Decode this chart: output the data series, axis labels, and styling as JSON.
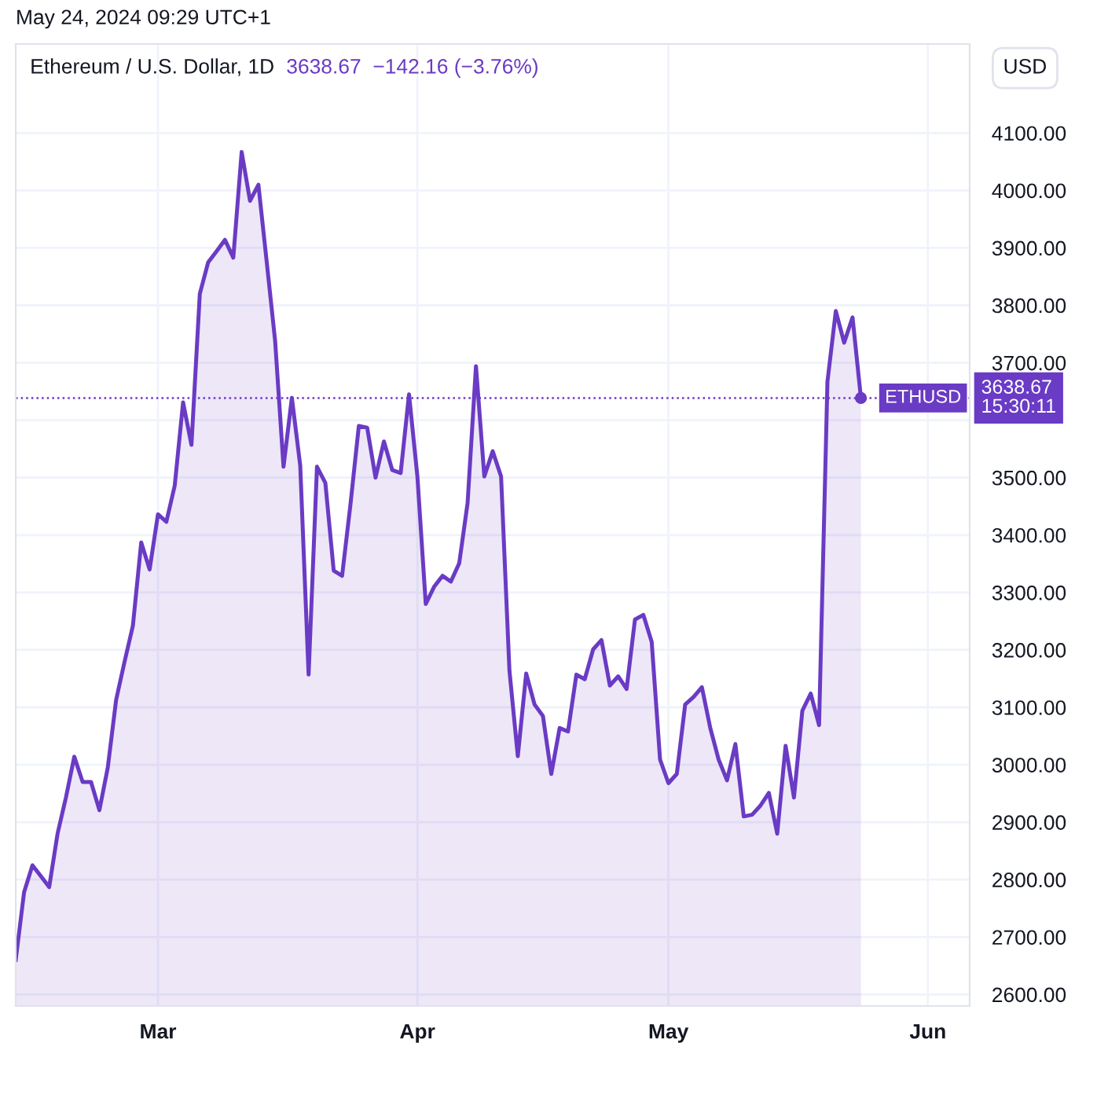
{
  "chart_data": {
    "type": "area",
    "title": "Ethereum / U.S. Dollar, 1D",
    "subtitle": "May 24, 2024 09:29 UTC+1",
    "ylabel": "USD",
    "annotations": [
      "3638.67  −142.16 (−3.76%)",
      {
        "text": "ETHUSD",
        "x": "2024-05-24",
        "y": 3638.67
      }
    ],
    "x": [
      "2024-02-13",
      "2024-02-14",
      "2024-02-15",
      "2024-02-16",
      "2024-02-17",
      "2024-02-18",
      "2024-02-19",
      "2024-02-20",
      "2024-02-21",
      "2024-02-22",
      "2024-02-23",
      "2024-02-24",
      "2024-02-25",
      "2024-02-26",
      "2024-02-27",
      "2024-02-28",
      "2024-02-29",
      "2024-03-01",
      "2024-03-02",
      "2024-03-03",
      "2024-03-04",
      "2024-03-05",
      "2024-03-06",
      "2024-03-07",
      "2024-03-08",
      "2024-03-09",
      "2024-03-10",
      "2024-03-11",
      "2024-03-12",
      "2024-03-13",
      "2024-03-14",
      "2024-03-15",
      "2024-03-16",
      "2024-03-17",
      "2024-03-18",
      "2024-03-19",
      "2024-03-20",
      "2024-03-21",
      "2024-03-22",
      "2024-03-23",
      "2024-03-24",
      "2024-03-25",
      "2024-03-26",
      "2024-03-27",
      "2024-03-28",
      "2024-03-29",
      "2024-03-30",
      "2024-03-31",
      "2024-04-01",
      "2024-04-02",
      "2024-04-03",
      "2024-04-04",
      "2024-04-05",
      "2024-04-06",
      "2024-04-07",
      "2024-04-08",
      "2024-04-09",
      "2024-04-10",
      "2024-04-11",
      "2024-04-12",
      "2024-04-13",
      "2024-04-14",
      "2024-04-15",
      "2024-04-16",
      "2024-04-17",
      "2024-04-18",
      "2024-04-19",
      "2024-04-20",
      "2024-04-21",
      "2024-04-22",
      "2024-04-23",
      "2024-04-24",
      "2024-04-25",
      "2024-04-26",
      "2024-04-27",
      "2024-04-28",
      "2024-04-29",
      "2024-04-30",
      "2024-05-01",
      "2024-05-02",
      "2024-05-03",
      "2024-05-04",
      "2024-05-05",
      "2024-05-06",
      "2024-05-07",
      "2024-05-08",
      "2024-05-09",
      "2024-05-10",
      "2024-05-11",
      "2024-05-12",
      "2024-05-13",
      "2024-05-14",
      "2024-05-15",
      "2024-05-16",
      "2024-05-17",
      "2024-05-18",
      "2024-05-19",
      "2024-05-20",
      "2024-05-21",
      "2024-05-22",
      "2024-05-23",
      "2024-05-24"
    ],
    "series": [
      {
        "color": "#6a3bc4",
        "values": [
          2660,
          2778,
          2825,
          2806,
          2787,
          2880,
          2943,
          3014,
          2970,
          2970,
          2921,
          2995,
          3113,
          3179,
          3242,
          3387,
          3340,
          3436,
          3423,
          3486,
          3631,
          3557,
          3820,
          3875,
          3894,
          3914,
          3883,
          4067,
          3982,
          4010,
          3875,
          3738,
          3519,
          3639,
          3521,
          3157,
          3519,
          3491,
          3338,
          3329,
          3453,
          3590,
          3587,
          3500,
          3563,
          3513,
          3508,
          3645,
          3502,
          3280,
          3310,
          3329,
          3319,
          3351,
          3456,
          3694,
          3502,
          3546,
          3502,
          3164,
          3015,
          3159,
          3105,
          3085,
          2984,
          3064,
          3058,
          3157,
          3149,
          3201,
          3217,
          3138,
          3154,
          3132,
          3253,
          3261,
          3214,
          3009,
          2968,
          2984,
          3105,
          3118,
          3135,
          3064,
          3009,
          2973,
          3036,
          2910,
          2913,
          2929,
          2951,
          2880,
          3033,
          2943,
          3094,
          3124,
          3069,
          3667,
          3790,
          3735,
          3779,
          3638.67
        ]
      }
    ],
    "xlim": [
      "2024-02-13",
      "2024-06-06"
    ],
    "xticks": [
      {
        "value": "2024-03-01",
        "label": "Mar"
      },
      {
        "value": "2024-04-01",
        "label": "Apr"
      },
      {
        "value": "2024-05-01",
        "label": "May"
      },
      {
        "value": "2024-06-01",
        "label": "Jun"
      }
    ],
    "ylim": [
      2580,
      4255
    ],
    "yticks": [
      {
        "value": 2600,
        "label": "2600.00"
      },
      {
        "value": 2700,
        "label": "2700.00"
      },
      {
        "value": 2800,
        "label": "2800.00"
      },
      {
        "value": 2900,
        "label": "2900.00"
      },
      {
        "value": 3000,
        "label": "3000.00"
      },
      {
        "value": 3100,
        "label": "3100.00"
      },
      {
        "value": 3200,
        "label": "3200.00"
      },
      {
        "value": 3300,
        "label": "3300.00"
      },
      {
        "value": 3400,
        "label": "3400.00"
      },
      {
        "value": 3500,
        "label": "3500.00"
      },
      {
        "value": 3600,
        "label": null
      },
      {
        "value": 3700,
        "label": "3700.00"
      },
      {
        "value": 3800,
        "label": "3800.00"
      },
      {
        "value": 3900,
        "label": "3900.00"
      },
      {
        "value": 4000,
        "label": "4000.00"
      },
      {
        "value": 4100,
        "label": "4100.00"
      }
    ],
    "grid": true,
    "ref_lines": [
      {
        "axis": "y",
        "value": 3638.67,
        "label": "3638.67\n15:30:11",
        "color": "#6a3bc4",
        "line_style": "dotted"
      }
    ]
  }
}
